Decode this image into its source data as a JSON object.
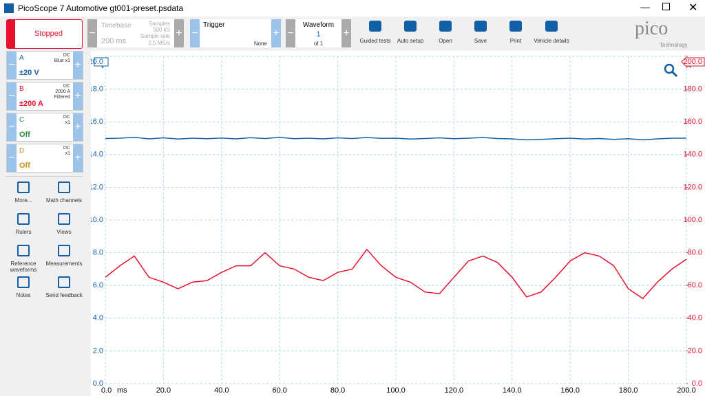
{
  "window": {
    "title": "PicoScope 7 Automotive gt001-preset.psdata"
  },
  "run_button": "Stopped",
  "timebase": {
    "label": "Timebase",
    "value": "200 ms",
    "samples_label": "Samples",
    "samples": "500 kS",
    "rate_label": "Sample rate",
    "rate": "2.5 MS/s"
  },
  "trigger": {
    "label": "Trigger",
    "mode": "None"
  },
  "waveform": {
    "label": "Waveform",
    "current": "1",
    "total": "of 1"
  },
  "tools": [
    "Guided tests",
    "Auto setup",
    "Open",
    "Save",
    "Print",
    "Vehicle details"
  ],
  "logo": {
    "name": "pico",
    "tagline": "Technology"
  },
  "channels": [
    {
      "name": "A",
      "coupling": "DC",
      "probe": [
        "Blue x1"
      ],
      "range": "±20 V"
    },
    {
      "name": "B",
      "coupling": "DC",
      "probe": [
        "2000 A",
        "Filtered"
      ],
      "range": "±200 A"
    },
    {
      "name": "C",
      "coupling": "DC",
      "probe": [
        "x1"
      ],
      "range": "Off"
    },
    {
      "name": "D",
      "coupling": "DC",
      "probe": [
        "x1"
      ],
      "range": "Off"
    }
  ],
  "sidebar": [
    "More...",
    "Math channels",
    "Rulers",
    "Views",
    "Reference waveforms",
    "Measurements",
    "Notes",
    "Send feedback"
  ],
  "chart_data": {
    "type": "line",
    "x_unit": "ms",
    "y_unit": "V",
    "y2_unit": "A",
    "x": [
      0,
      5,
      10,
      15,
      20,
      25,
      30,
      35,
      40,
      45,
      50,
      55,
      60,
      65,
      70,
      75,
      80,
      85,
      90,
      95,
      100,
      105,
      110,
      115,
      120,
      125,
      130,
      135,
      140,
      145,
      150,
      155,
      160,
      165,
      170,
      175,
      180,
      185,
      190,
      195,
      200
    ],
    "xlim": [
      0,
      200
    ],
    "xticks": [
      {
        "value": 0,
        "label": "0.0"
      },
      {
        "value": 20,
        "label": "20.0"
      },
      {
        "value": 40,
        "label": "40.0"
      },
      {
        "value": 60,
        "label": "60.0"
      },
      {
        "value": 80,
        "label": "80.0"
      },
      {
        "value": 100,
        "label": "100.0"
      },
      {
        "value": 120,
        "label": "120.0"
      },
      {
        "value": 140,
        "label": "140.0"
      },
      {
        "value": 160,
        "label": "160.0"
      },
      {
        "value": 180,
        "label": "180.0"
      },
      {
        "value": 200,
        "label": "200.0"
      }
    ],
    "ylim": [
      0,
      20
    ],
    "yticks": [
      {
        "value": 0,
        "label": "0.0"
      },
      {
        "value": 2,
        "label": "2.0"
      },
      {
        "value": 4,
        "label": "4.0"
      },
      {
        "value": 6,
        "label": "6.0"
      },
      {
        "value": 8,
        "label": "8.0"
      },
      {
        "value": 10,
        "label": "10.0"
      },
      {
        "value": 12,
        "label": "12.0"
      },
      {
        "value": 14,
        "label": "14.0"
      },
      {
        "value": 16,
        "label": "16.0"
      },
      {
        "value": 18,
        "label": "18.0"
      },
      {
        "value": 20,
        "label": "20.0"
      }
    ],
    "y2lim": [
      0,
      200
    ],
    "y2ticks": [
      {
        "value": 0,
        "label": "0.0"
      },
      {
        "value": 20,
        "label": "20.0"
      },
      {
        "value": 40,
        "label": "40.0"
      },
      {
        "value": 60,
        "label": "60.0"
      },
      {
        "value": 80,
        "label": "80.0"
      },
      {
        "value": 100,
        "label": "100.0"
      },
      {
        "value": 120,
        "label": "120.0"
      },
      {
        "value": 140,
        "label": "140.0"
      },
      {
        "value": 160,
        "label": "160.0"
      },
      {
        "value": 180,
        "label": "180.0"
      },
      {
        "value": 200,
        "label": "200.0"
      }
    ],
    "grid": true,
    "series": [
      {
        "name": "A",
        "color": "#1160a6",
        "values": [
          14.98,
          15.0,
          15.05,
          14.96,
          15.02,
          14.95,
          15.0,
          14.97,
          15.01,
          14.96,
          15.03,
          14.98,
          15.05,
          14.97,
          15.0,
          14.96,
          15.02,
          14.98,
          15.04,
          14.99,
          15.0,
          14.95,
          14.98,
          15.02,
          14.97,
          15.0,
          15.04,
          14.98,
          14.96,
          14.9,
          14.93,
          14.97,
          15.0,
          14.95,
          14.98,
          14.93,
          14.97,
          14.9,
          14.96,
          15.0,
          15.0
        ]
      },
      {
        "name": "B",
        "color": "#e8102c",
        "axis": "y2",
        "values": [
          65,
          72,
          78,
          65,
          62,
          58,
          62,
          63,
          68,
          72,
          72,
          80,
          72,
          70,
          65,
          63,
          68,
          70,
          82,
          72,
          65,
          62,
          56,
          55,
          65,
          75,
          78,
          74,
          65,
          53,
          56,
          65,
          75,
          80,
          78,
          72,
          58,
          52,
          62,
          70,
          76
        ]
      }
    ]
  }
}
